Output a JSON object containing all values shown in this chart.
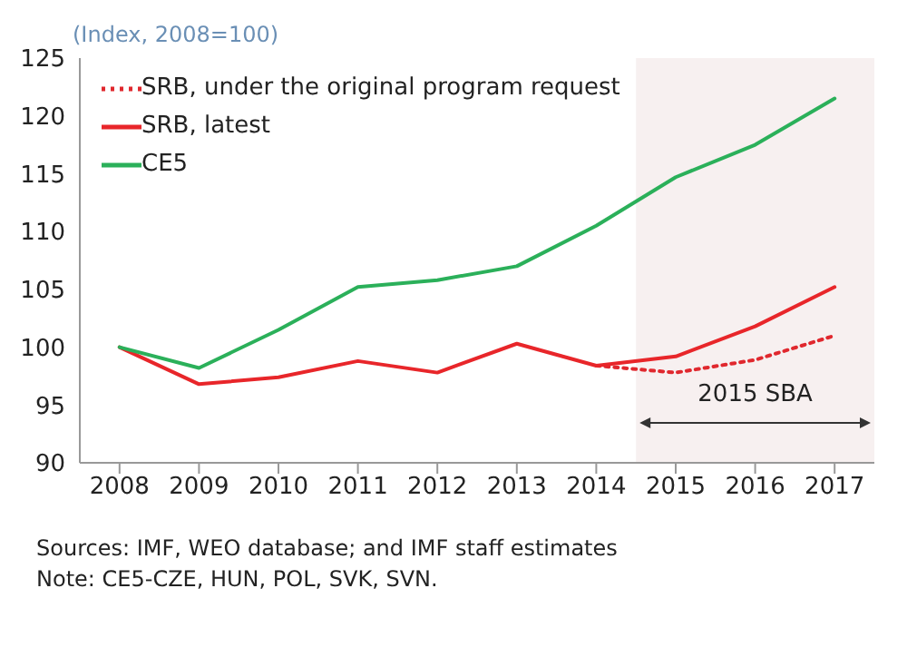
{
  "chart_data": {
    "type": "line",
    "xlim": [
      2007.5,
      2017.5
    ],
    "xticks": [
      2008,
      2009,
      2010,
      2011,
      2012,
      2013,
      2014,
      2015,
      2016,
      2017
    ],
    "ylim": [
      90,
      125
    ],
    "yticks": [
      90,
      95,
      100,
      105,
      110,
      115,
      120,
      125
    ],
    "grid": false,
    "legend": "top left",
    "marker": "none",
    "series": [
      {
        "name": "SRB, under the original program request",
        "color": "#e0282e",
        "line_style": "dotted",
        "x": [
          2014,
          2015,
          2016,
          2017
        ],
        "values": [
          98.4,
          97.8,
          98.9,
          101
        ]
      },
      {
        "name": "SRB, latest",
        "color": "#e8262a",
        "line_style": "solid",
        "x": [
          2008,
          2009,
          2010,
          2011,
          2012,
          2013,
          2014,
          2015,
          2016,
          2017
        ],
        "values": [
          100,
          96.8,
          97.4,
          98.8,
          97.8,
          100.3,
          98.4,
          99.2,
          101.8,
          105.2
        ]
      },
      {
        "name": "CE5",
        "color": "#2bb05a",
        "line_style": "solid",
        "x": [
          2008,
          2009,
          2010,
          2011,
          2012,
          2013,
          2014,
          2015,
          2016,
          2017
        ],
        "values": [
          100,
          98.2,
          101.5,
          105.2,
          105.8,
          107,
          110.5,
          114.7,
          117.5,
          121.5
        ]
      }
    ],
    "bands": [
      {
        "axis": "x",
        "from": 2014.5,
        "to": 2017.5,
        "label": "2015 SBA",
        "color": "#f7f0f0"
      }
    ],
    "annotations": [
      "(Index, 2008=100)",
      "Sources: IMF, WEO database; and IMF staff estimates",
      "Note: CE5-CZE, HUN, POL, SVK, SVN."
    ]
  }
}
